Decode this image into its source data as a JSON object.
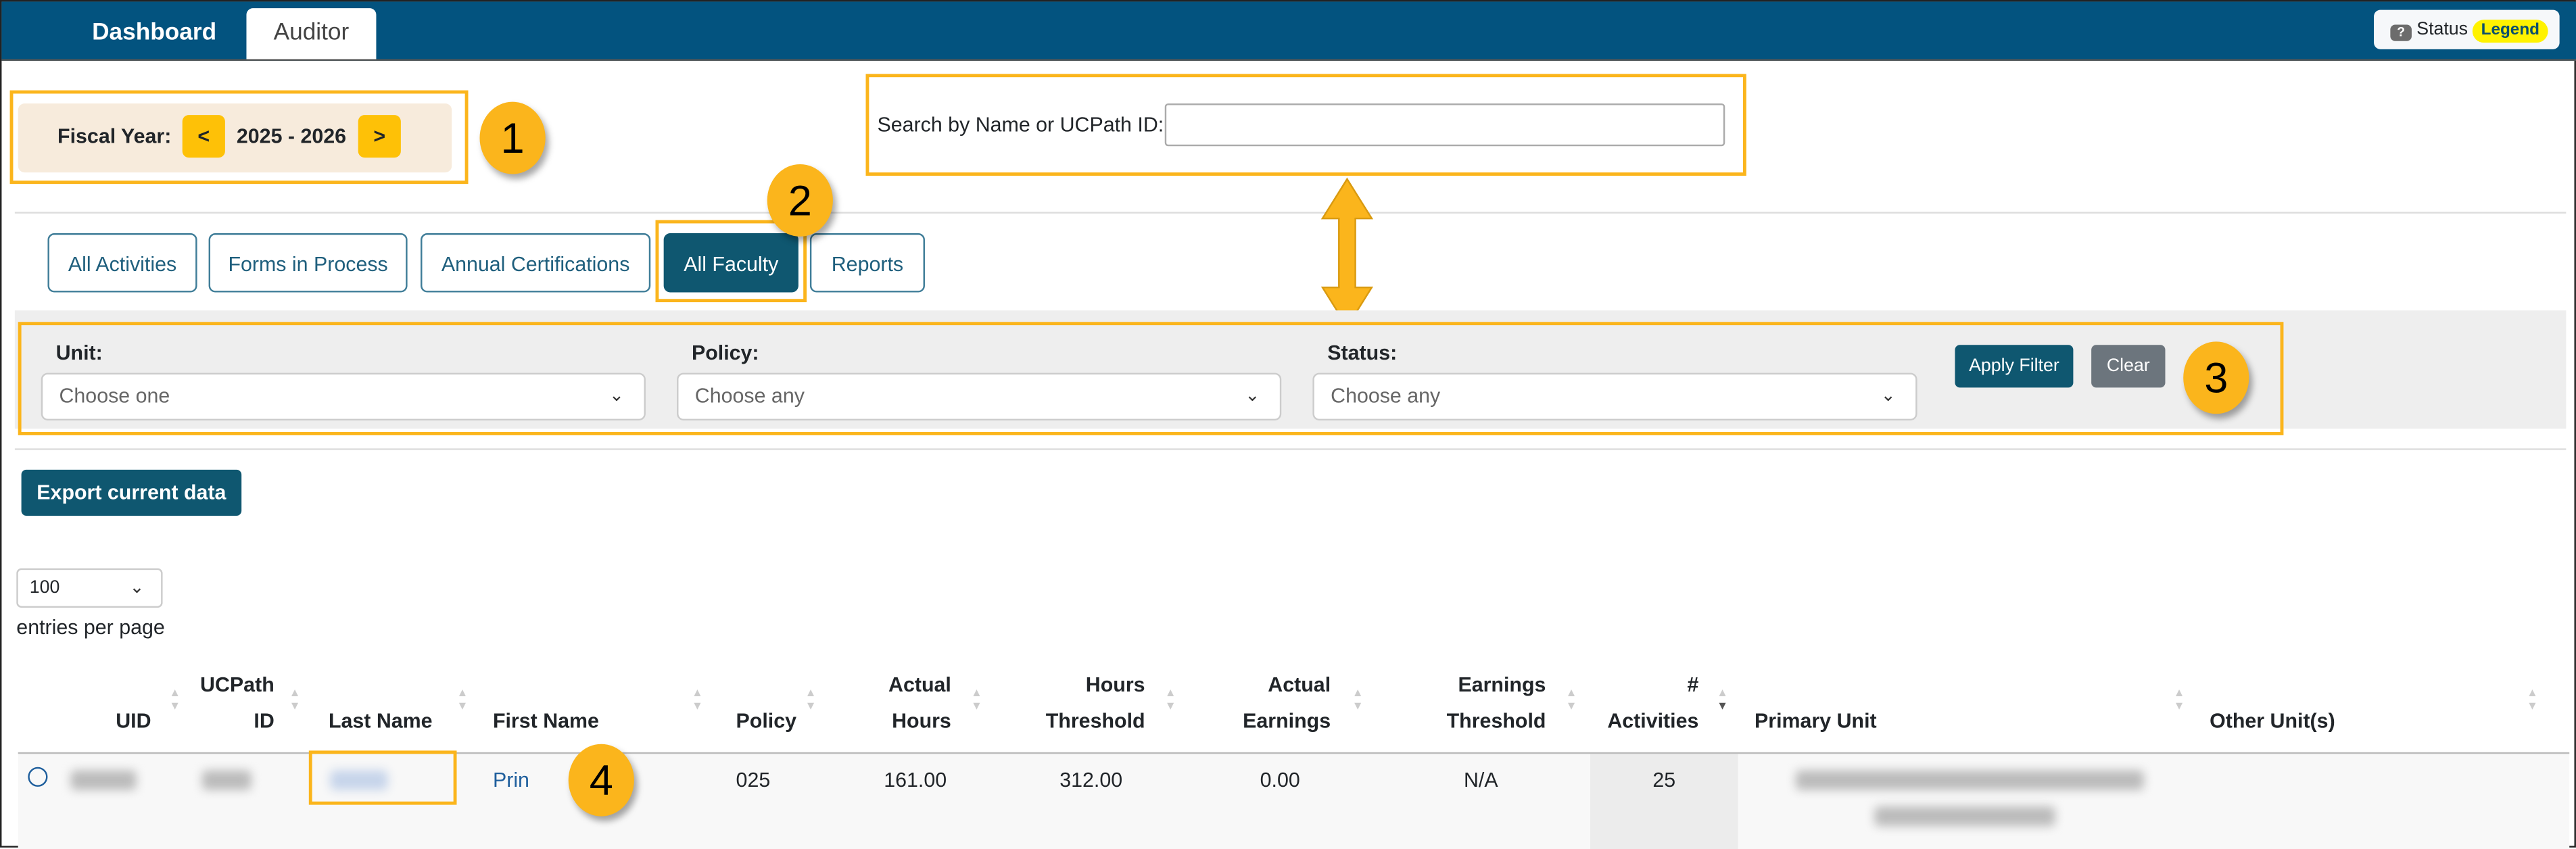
{
  "nav": {
    "tabs": [
      {
        "label": "Dashboard",
        "active": false
      },
      {
        "label": "Auditor",
        "active": true
      }
    ],
    "status": {
      "icon": "question-icon",
      "label": "Status",
      "legend": "Legend"
    }
  },
  "fiscal": {
    "label": "Fiscal Year:",
    "prev": "<",
    "value": "2025 - 2026",
    "next": ">"
  },
  "search": {
    "label": "Search by Name or UCPath ID:",
    "value": "",
    "placeholder": ""
  },
  "tabs": [
    {
      "label": "All Activities"
    },
    {
      "label": "Forms in Process"
    },
    {
      "label": "Annual Certifications"
    },
    {
      "label": "All Faculty",
      "active": true
    },
    {
      "label": "Reports"
    }
  ],
  "filters": {
    "unit": {
      "label": "Unit:",
      "value": "Choose one"
    },
    "policy": {
      "label": "Policy:",
      "value": "Choose any"
    },
    "status": {
      "label": "Status:",
      "value": "Choose any"
    },
    "apply": "Apply Filter",
    "clear": "Clear"
  },
  "export": "Export current data",
  "page_size": {
    "value": "100",
    "label": "entries per page"
  },
  "table": {
    "headers": [
      [
        "",
        "UID"
      ],
      [
        "UCPath",
        "ID"
      ],
      [
        "",
        "Last Name"
      ],
      [
        "",
        "First Name"
      ],
      [
        "",
        "Policy"
      ],
      [
        "Actual",
        "Hours"
      ],
      [
        "Hours",
        "Threshold"
      ],
      [
        "Actual",
        "Earnings"
      ],
      [
        "Earnings",
        "Threshold"
      ],
      [
        "#",
        "Activities"
      ],
      [
        "",
        "Primary Unit"
      ],
      [
        "",
        "Other Unit(s)"
      ]
    ],
    "sorted_column": "# Activities",
    "sort_direction": "descending",
    "rows": [
      {
        "first_name": "Prin",
        "policy": "025",
        "actual_hours": "161.00",
        "hours_threshold": "312.00",
        "actual_earnings": "0.00",
        "earnings_threshold": "N/A",
        "activities": "25",
        "other_units": ""
      }
    ]
  },
  "callouts": [
    "1",
    "2",
    "3",
    "4"
  ],
  "colors": {
    "header": "#03537f",
    "accent": "#0f5770",
    "highlight": "#fbb51c",
    "button_yellow": "#fec107"
  }
}
